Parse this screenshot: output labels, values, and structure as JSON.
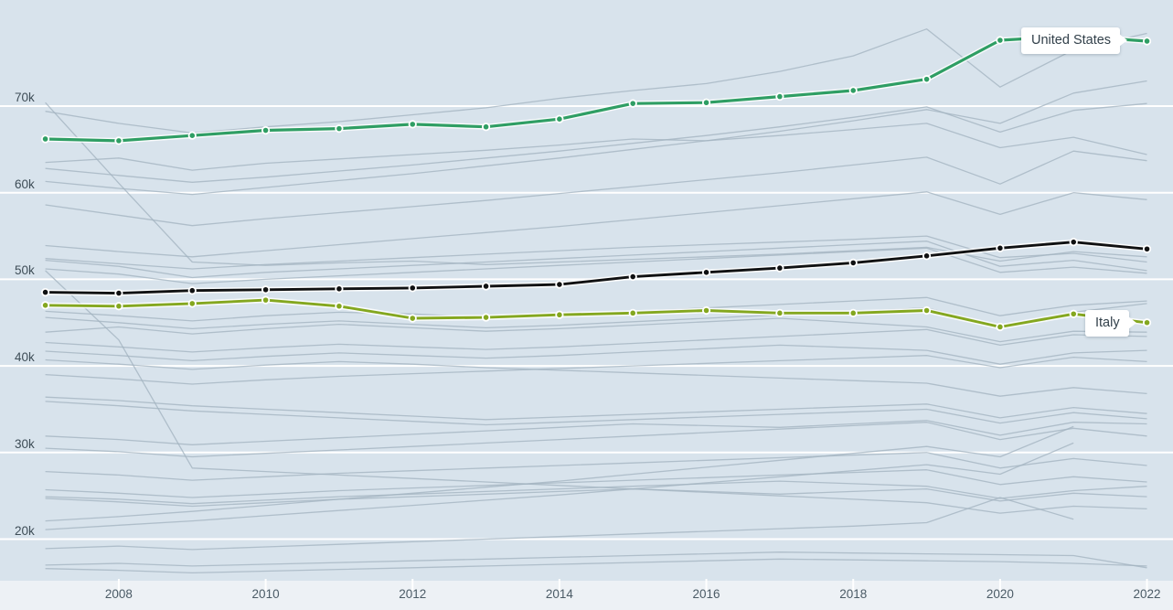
{
  "chart_data": {
    "type": "line",
    "title": "",
    "xlabel": "",
    "ylabel": "",
    "unit_suffix": "k",
    "x": [
      2007,
      2008,
      2009,
      2010,
      2011,
      2012,
      2013,
      2014,
      2015,
      2016,
      2017,
      2018,
      2019,
      2020,
      2021,
      2022
    ],
    "x_axis": {
      "tick_years": [
        2008,
        2010,
        2012,
        2014,
        2016,
        2018,
        2020,
        2022
      ],
      "tick_labels": [
        "2008",
        "2010",
        "2012",
        "2014",
        "2016",
        "2018",
        "2020",
        "2022"
      ]
    },
    "y_axis": {
      "ticks_k": [
        20,
        30,
        40,
        50,
        60,
        70
      ],
      "tick_labels": [
        "20k",
        "30k",
        "40k",
        "50k",
        "60k",
        "70k"
      ]
    },
    "ylim_k": [
      15.2,
      82.2
    ],
    "grid": "horizontal-white-lines",
    "legend_position": "inline-labels",
    "colors": {
      "background": "#d8e3ec",
      "axis_strip": "#edf1f5",
      "gridline": "#ffffff",
      "gray_series": "#a3b4c0",
      "united_states": "#2f9e64",
      "black_series": "#101112",
      "italy": "#84a71f"
    },
    "annotations": [
      {
        "text": "United States",
        "points_to_year": 2022
      },
      {
        "text": "Italy",
        "points_to_year": 2022
      }
    ],
    "series": [
      {
        "name": "United States",
        "role": "highlight",
        "color": "#2f9e64",
        "values_k": [
          66.2,
          66.0,
          66.6,
          67.2,
          67.4,
          67.9,
          67.6,
          68.5,
          70.3,
          70.4,
          71.1,
          71.8,
          73.1,
          77.6,
          78.1,
          77.5
        ]
      },
      {
        "name": "unlabeled-black",
        "role": "highlight",
        "color": "#101112",
        "values_k": [
          48.5,
          48.4,
          48.7,
          48.8,
          48.9,
          49.0,
          49.2,
          49.4,
          50.3,
          50.8,
          51.3,
          51.9,
          52.7,
          53.6,
          54.3,
          53.5
        ]
      },
      {
        "name": "Italy",
        "role": "highlight",
        "color": "#84a71f",
        "values_k": [
          47.0,
          46.9,
          47.2,
          47.6,
          46.9,
          45.5,
          45.6,
          45.9,
          46.1,
          46.4,
          46.1,
          46.1,
          46.4,
          44.5,
          46.0,
          45.0
        ]
      }
    ],
    "background_series_k": [
      [
        70.4,
        61.1,
        52.0,
        51.6,
        51.9,
        52.1,
        51.7,
        52.0,
        52.3,
        52.6,
        52.9,
        53.3,
        53.7,
        52.1,
        53.2,
        52.6
      ],
      [
        69.4,
        68.0,
        66.9,
        67.6,
        68.2,
        69.0,
        69.8,
        70.9,
        71.8,
        72.6,
        74.0,
        75.8,
        78.9,
        72.2,
        76.5,
        78.4
      ],
      [
        63.5,
        64.0,
        62.6,
        63.4,
        63.9,
        64.4,
        64.9,
        65.5,
        66.2,
        66.0,
        66.6,
        67.3,
        68.0,
        65.2,
        66.4,
        64.4
      ],
      [
        61.3,
        60.5,
        59.8,
        60.6,
        61.4,
        62.2,
        63.1,
        64.0,
        65.0,
        66.0,
        67.1,
        68.3,
        69.6,
        68.0,
        71.5,
        72.9
      ],
      [
        62.8,
        62.0,
        61.2,
        61.8,
        62.5,
        63.2,
        64.0,
        64.8,
        65.7,
        66.6,
        67.6,
        68.7,
        69.9,
        67.0,
        69.5,
        70.3
      ],
      [
        58.6,
        57.4,
        56.2,
        57.0,
        57.7,
        58.4,
        59.1,
        59.9,
        60.7,
        61.5,
        62.3,
        63.2,
        64.1,
        61.0,
        64.8,
        63.7
      ],
      [
        53.9,
        53.2,
        52.6,
        53.3,
        54.0,
        54.7,
        55.4,
        56.1,
        56.9,
        57.7,
        58.5,
        59.3,
        60.1,
        57.5,
        60.0,
        59.2
      ],
      [
        52.4,
        51.8,
        51.2,
        51.7,
        52.1,
        52.5,
        52.9,
        53.3,
        53.7,
        54.0,
        54.3,
        54.6,
        55.0,
        52.5,
        53.0,
        52.0
      ],
      [
        52.2,
        51.5,
        50.2,
        50.8,
        51.2,
        51.6,
        52.0,
        52.4,
        52.8,
        53.2,
        53.6,
        54.0,
        54.4,
        51.5,
        52.2,
        51.0
      ],
      [
        51.2,
        50.6,
        49.5,
        50.0,
        50.4,
        50.8,
        51.2,
        51.6,
        52.0,
        52.4,
        52.8,
        53.2,
        53.6,
        50.8,
        51.4,
        50.7
      ],
      [
        46.3,
        45.8,
        45.2,
        45.8,
        46.2,
        46.0,
        45.6,
        45.9,
        46.3,
        46.7,
        47.1,
        47.5,
        47.9,
        45.8,
        47.0,
        47.5
      ],
      [
        45.6,
        45.0,
        44.3,
        44.8,
        45.2,
        44.8,
        44.4,
        44.7,
        45.1,
        45.5,
        45.9,
        46.3,
        46.7,
        44.6,
        46.2,
        47.2
      ],
      [
        43.9,
        44.5,
        43.7,
        44.3,
        44.8,
        44.4,
        44.0,
        44.3,
        44.7,
        45.1,
        45.5,
        45.0,
        44.5,
        42.8,
        44.0,
        43.9
      ],
      [
        42.7,
        42.2,
        41.6,
        42.1,
        42.5,
        42.2,
        41.9,
        42.2,
        42.6,
        43.0,
        43.4,
        43.8,
        44.2,
        42.4,
        43.6,
        43.4
      ],
      [
        41.7,
        41.2,
        40.6,
        41.1,
        41.5,
        41.2,
        40.9,
        41.2,
        41.6,
        42.0,
        42.4,
        42.1,
        41.8,
        40.2,
        41.5,
        41.8
      ],
      [
        40.7,
        40.2,
        39.6,
        40.1,
        40.5,
        40.2,
        39.8,
        39.5,
        39.2,
        38.9,
        38.6,
        38.3,
        38.0,
        36.5,
        37.5,
        36.8
      ],
      [
        39.0,
        38.5,
        37.9,
        38.4,
        38.8,
        39.1,
        39.4,
        39.7,
        40.0,
        40.3,
        40.6,
        40.9,
        41.2,
        39.8,
        41.0,
        40.5
      ],
      [
        36.4,
        36.0,
        35.4,
        35.0,
        34.6,
        34.2,
        33.8,
        34.1,
        34.4,
        34.7,
        35.0,
        35.3,
        35.6,
        34.0,
        35.2,
        34.5
      ],
      [
        35.9,
        35.4,
        34.8,
        34.4,
        34.0,
        33.6,
        33.2,
        33.5,
        33.8,
        34.1,
        34.4,
        34.7,
        35.0,
        33.4,
        34.6,
        33.9
      ],
      [
        31.9,
        31.5,
        30.9,
        31.3,
        31.7,
        32.1,
        32.5,
        32.9,
        33.3,
        33.1,
        32.9,
        33.3,
        33.7,
        32.0,
        33.5,
        33.3
      ],
      [
        30.5,
        30.1,
        29.5,
        29.9,
        30.3,
        30.7,
        31.1,
        31.5,
        31.9,
        32.3,
        32.7,
        33.1,
        33.5,
        31.5,
        32.8,
        31.9
      ],
      [
        27.8,
        27.4,
        26.8,
        27.2,
        27.6,
        27.9,
        28.2,
        28.5,
        28.8,
        29.1,
        29.4,
        29.7,
        30.0,
        28.2,
        29.3,
        28.5
      ],
      [
        25.7,
        25.3,
        24.8,
        25.2,
        25.6,
        25.9,
        26.2,
        26.5,
        26.8,
        27.1,
        27.4,
        27.7,
        28.0,
        26.3,
        27.2,
        26.6
      ],
      [
        24.9,
        24.6,
        24.1,
        24.5,
        24.9,
        25.2,
        25.5,
        25.8,
        26.1,
        26.4,
        26.7,
        26.4,
        26.1,
        24.7,
        25.6,
        26.1
      ],
      [
        24.7,
        24.3,
        23.8,
        24.2,
        24.6,
        24.9,
        25.2,
        25.5,
        25.8,
        25.5,
        25.2,
        25.5,
        25.8,
        24.4,
        25.3,
        24.9
      ],
      [
        22.1,
        22.6,
        23.2,
        23.9,
        24.6,
        25.3,
        26.0,
        26.7,
        27.5,
        28.3,
        29.1,
        29.9,
        30.7,
        29.5,
        33.0,
        null
      ],
      [
        21.1,
        21.6,
        22.1,
        22.7,
        23.3,
        23.9,
        24.5,
        25.1,
        25.8,
        26.5,
        27.2,
        27.9,
        28.6,
        27.5,
        31.1,
        null
      ],
      [
        18.9,
        19.2,
        18.8,
        19.1,
        19.4,
        19.7,
        20.0,
        20.3,
        20.6,
        20.9,
        21.2,
        21.5,
        21.9,
        24.8,
        22.3,
        null
      ],
      [
        51.0,
        43.0,
        28.2,
        27.8,
        27.4,
        27.0,
        26.6,
        26.2,
        25.8,
        25.4,
        25.0,
        24.6,
        24.2,
        23.0,
        23.8,
        23.5
      ],
      [
        17.0,
        17.2,
        16.9,
        17.1,
        17.3,
        17.5,
        17.7,
        17.9,
        18.1,
        18.3,
        18.5,
        18.4,
        18.3,
        18.2,
        18.1,
        16.7
      ],
      [
        16.6,
        16.4,
        16.1,
        16.3,
        16.5,
        16.7,
        16.9,
        17.1,
        17.3,
        17.5,
        17.7,
        17.6,
        17.5,
        17.4,
        17.2,
        16.9
      ]
    ]
  }
}
